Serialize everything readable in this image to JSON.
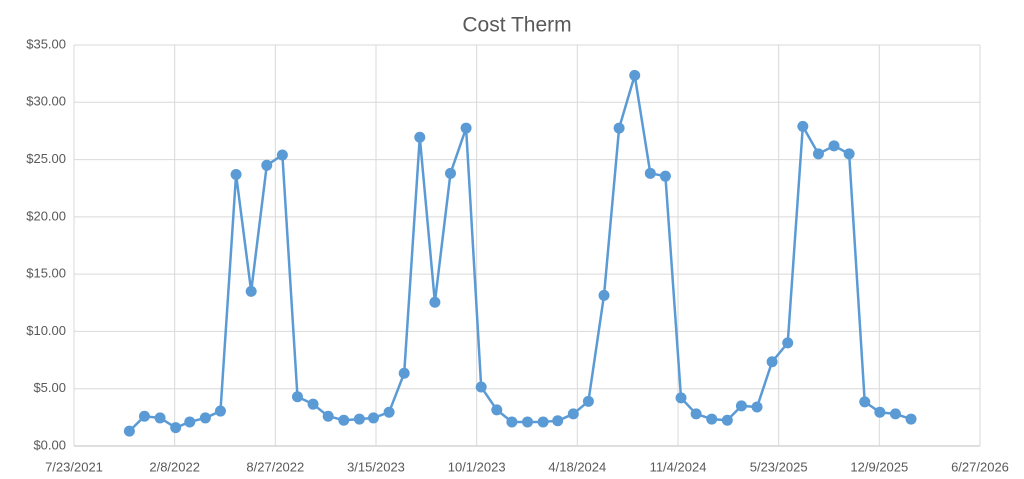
{
  "chart_data": {
    "type": "line",
    "title": "Cost Therm",
    "color": "#5b9bd5",
    "grid": true,
    "x": [
      "11/10/2021",
      "12/10/2021",
      "1/10/2022",
      "2/10/2022",
      "3/10/2022",
      "4/10/2022",
      "5/10/2022",
      "6/10/2022",
      "7/10/2022",
      "8/10/2022",
      "9/10/2022",
      "10/10/2022",
      "11/10/2022",
      "12/10/2022",
      "1/10/2023",
      "2/10/2023",
      "3/10/2023",
      "4/10/2023",
      "5/10/2023",
      "6/10/2023",
      "7/10/2023",
      "8/10/2023",
      "9/10/2023",
      "10/10/2023",
      "11/10/2023",
      "12/10/2023",
      "1/10/2024",
      "2/10/2024",
      "3/10/2024",
      "4/10/2024",
      "5/10/2024",
      "6/10/2024",
      "7/10/2024",
      "8/10/2024",
      "9/10/2024",
      "10/10/2024",
      "11/10/2024",
      "12/10/2024",
      "1/10/2025",
      "2/10/2025",
      "3/10/2025",
      "4/10/2025",
      "5/10/2025",
      "6/10/2025",
      "7/10/2025",
      "8/10/2025",
      "9/10/2025",
      "10/10/2025",
      "11/10/2025",
      "12/10/2025",
      "1/10/2026",
      "2/10/2026"
    ],
    "values": [
      1.3,
      2.6,
      2.45,
      1.6,
      2.1,
      2.45,
      3.05,
      23.7,
      13.5,
      24.5,
      25.4,
      4.3,
      3.65,
      2.6,
      2.25,
      2.35,
      2.45,
      2.95,
      6.35,
      26.95,
      12.55,
      23.8,
      27.75,
      5.15,
      3.15,
      2.1,
      2.1,
      2.1,
      2.2,
      2.8,
      3.9,
      13.15,
      27.75,
      32.35,
      23.8,
      23.55,
      4.2,
      2.8,
      2.35,
      2.25,
      3.5,
      3.4,
      7.35,
      9.0,
      27.9,
      25.5,
      26.2,
      25.5,
      3.85,
      2.95,
      2.8,
      2.35
    ],
    "xlim": [
      "7/23/2021",
      "6/27/2026"
    ],
    "xticks": [
      "7/23/2021",
      "2/8/2022",
      "8/27/2022",
      "3/15/2023",
      "10/1/2023",
      "4/18/2024",
      "11/4/2024",
      "5/23/2025",
      "12/9/2025",
      "6/27/2026"
    ],
    "ylim": [
      0,
      35
    ],
    "yticks": [
      {
        "value": 0,
        "label": "$0.00"
      },
      {
        "value": 5,
        "label": "$5.00"
      },
      {
        "value": 10,
        "label": "$10.00"
      },
      {
        "value": 15,
        "label": "$15.00"
      },
      {
        "value": 20,
        "label": "$20.00"
      },
      {
        "value": 25,
        "label": "$25.00"
      },
      {
        "value": 30,
        "label": "$30.00"
      },
      {
        "value": 35,
        "label": "$35.00"
      }
    ]
  }
}
